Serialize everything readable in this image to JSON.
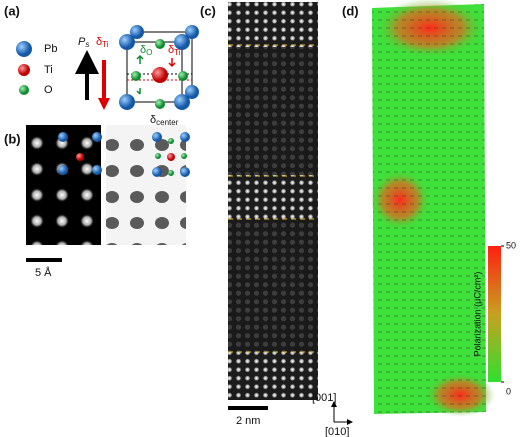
{
  "panels": {
    "a": "(a)",
    "b": "(b)",
    "c": "(c)",
    "d": "(d)"
  },
  "legend": {
    "pb": "Pb",
    "ti": "Ti",
    "o": "O"
  },
  "symbols": {
    "ps": {
      "main": "P",
      "sub": "s"
    },
    "dti": {
      "main": "δ",
      "sub": "Ti"
    },
    "do": {
      "main": "δ",
      "sub": "O"
    },
    "dti2": {
      "main": "δ",
      "sub": "Ti"
    },
    "dcenter": {
      "main": "δ",
      "sub": "center"
    }
  },
  "scale_bars": {
    "b": "5 Å",
    "c": "2 nm"
  },
  "directions": {
    "up": "[001]",
    "right": "[010]"
  },
  "colorbar": {
    "label": "Polarization (μC/cm²)",
    "ticks": [
      0,
      50
    ]
  }
}
